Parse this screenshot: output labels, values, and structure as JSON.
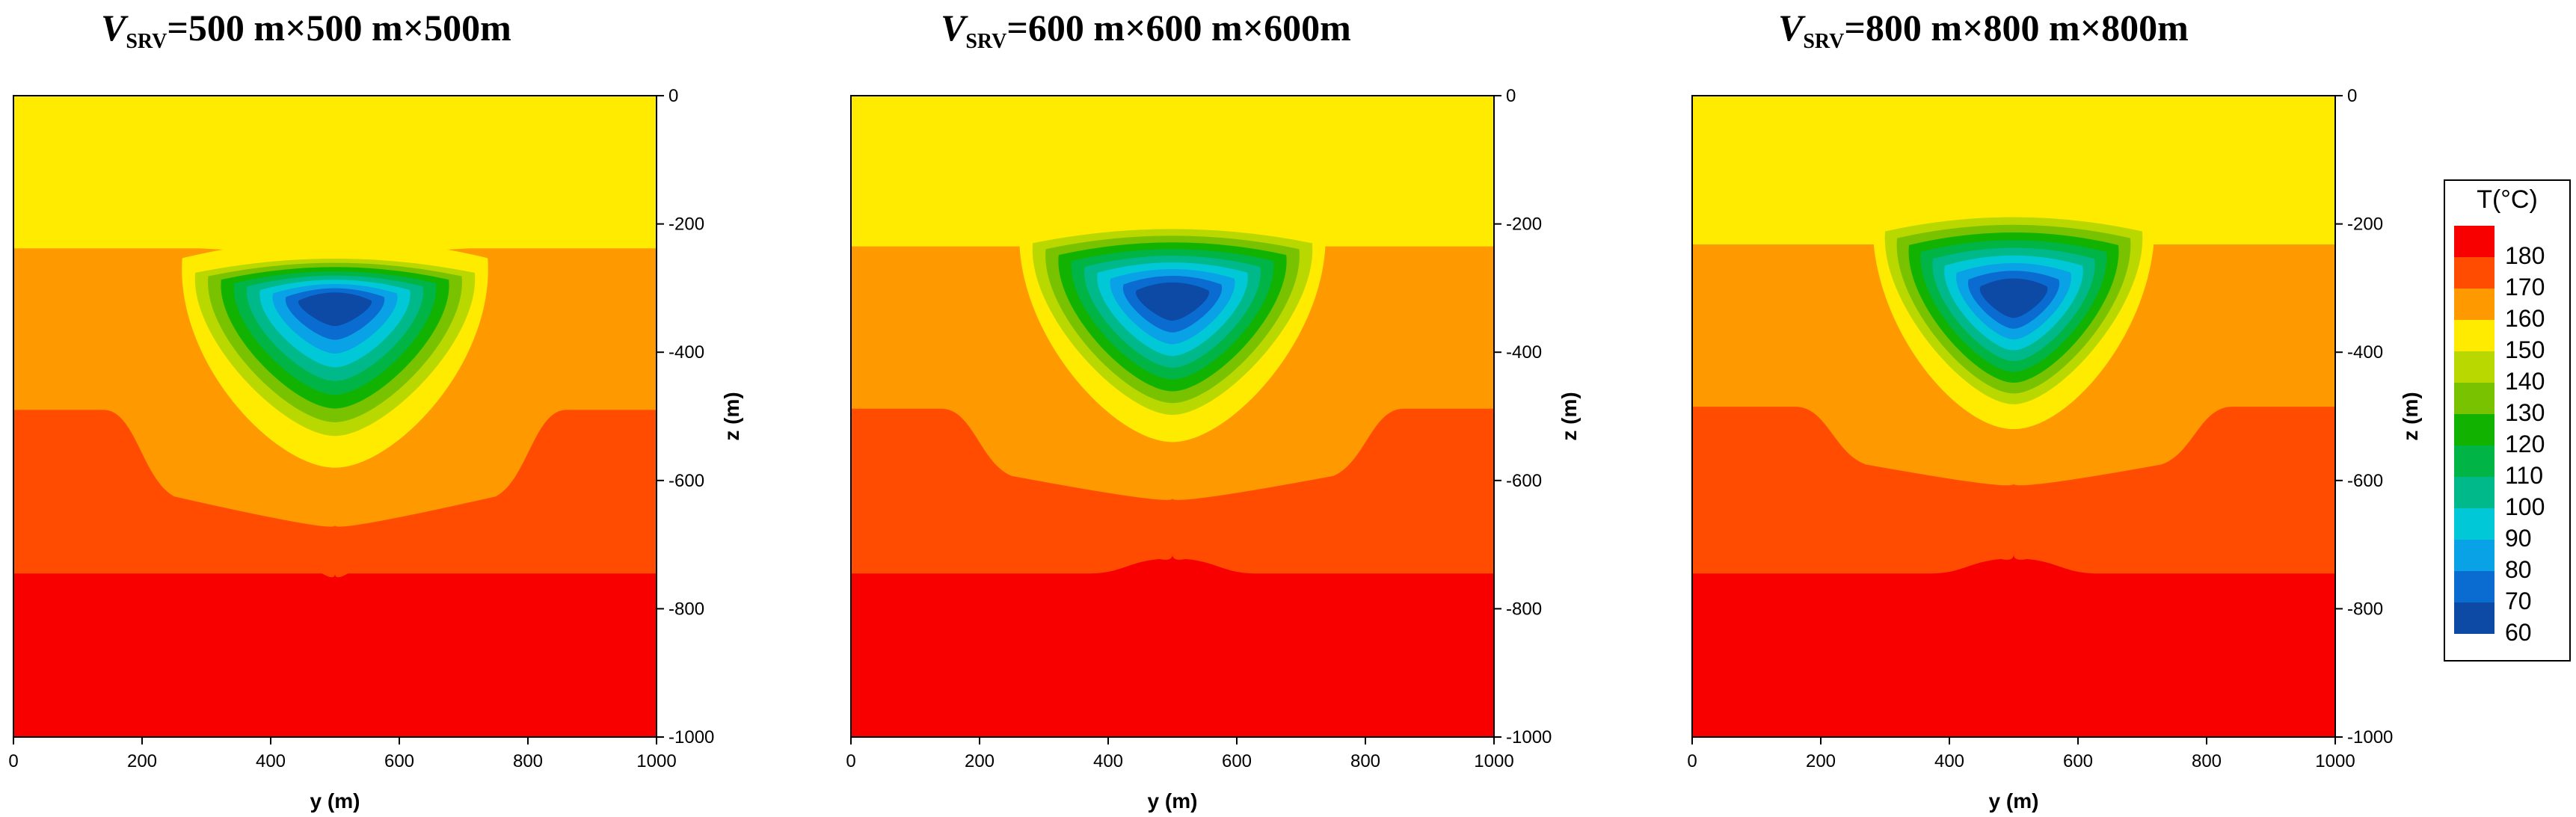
{
  "chart_data": [
    {
      "type": "heatmap",
      "title": {
        "prefix": "V",
        "subscript": "SRV",
        "suffix": "=500 m×500 m×500m"
      },
      "xlabel": "y (m)",
      "ylabel": "z (m)",
      "xlim": [
        0,
        1000
      ],
      "ylim": [
        -1000,
        0
      ],
      "xticks": [
        "0",
        "200",
        "400",
        "600",
        "800",
        "1000"
      ],
      "yticks": [
        "0",
        "-200",
        "-400",
        "-600",
        "-800",
        "-1000"
      ],
      "cold_zone": {
        "center_y": 500,
        "center_z": -300,
        "half_width": 250,
        "top_z": -230,
        "bottom_z": -580
      },
      "isotherm_dips_m": {
        "160": 350,
        "170": 180,
        "180": 0
      },
      "layer_boundaries_z": {
        "160": -238,
        "170": -490,
        "180": -745
      }
    },
    {
      "type": "heatmap",
      "title": {
        "prefix": "V",
        "subscript": "SRV",
        "suffix": "=600 m×600 m×600m"
      },
      "xlabel": "y (m)",
      "ylabel": "z (m)",
      "xlim": [
        0,
        1000
      ],
      "ylim": [
        -1000,
        0
      ],
      "xticks": [
        "0",
        "200",
        "400",
        "600",
        "800",
        "1000"
      ],
      "yticks": [
        "0",
        "-200",
        "-400",
        "-600",
        "-800",
        "-1000"
      ],
      "cold_zone": {
        "center_y": 500,
        "center_z": -300,
        "half_width": 250,
        "top_z": -180,
        "bottom_z": -540
      },
      "isotherm_dips_m": {
        "160": 300,
        "170": 140,
        "180": 30
      },
      "layer_boundaries_z": {
        "160": -235,
        "170": -488,
        "180": -745
      }
    },
    {
      "type": "heatmap",
      "title": {
        "prefix": "V",
        "subscript": "SRV",
        "suffix": "=800 m×800 m×800m"
      },
      "xlabel": "y (m)",
      "ylabel": "z (m)",
      "xlim": [
        0,
        1000
      ],
      "ylim": [
        -1000,
        0
      ],
      "xticks": [
        "0",
        "200",
        "400",
        "600",
        "800",
        "1000"
      ],
      "yticks": [
        "0",
        "-200",
        "-400",
        "-600",
        "-800",
        "-1000"
      ],
      "cold_zone": {
        "center_y": 500,
        "center_z": -300,
        "half_width": 230,
        "top_z": -160,
        "bottom_z": -520
      },
      "isotherm_dips_m": {
        "160": 300,
        "170": 120,
        "180": 30
      },
      "layer_boundaries_z": {
        "160": -232,
        "170": -485,
        "180": -745
      }
    }
  ],
  "legend": {
    "title": "T(°C)",
    "levels": [
      {
        "label": "180",
        "color": "#f80000"
      },
      {
        "label": "170",
        "color": "#ff4c00"
      },
      {
        "label": "160",
        "color": "#ff9900"
      },
      {
        "label": "150",
        "color": "#ffeb00"
      },
      {
        "label": "140",
        "color": "#b9d800"
      },
      {
        "label": "130",
        "color": "#78c200"
      },
      {
        "label": "120",
        "color": "#12b200"
      },
      {
        "label": "110",
        "color": "#00b446"
      },
      {
        "label": "100",
        "color": "#00b98b"
      },
      {
        "label": "90",
        "color": "#00c8d6"
      },
      {
        "label": "80",
        "color": "#0aa2e6"
      },
      {
        "label": "70",
        "color": "#0a6cd0"
      },
      {
        "label": "60",
        "color": "#0c4aa6"
      }
    ]
  }
}
